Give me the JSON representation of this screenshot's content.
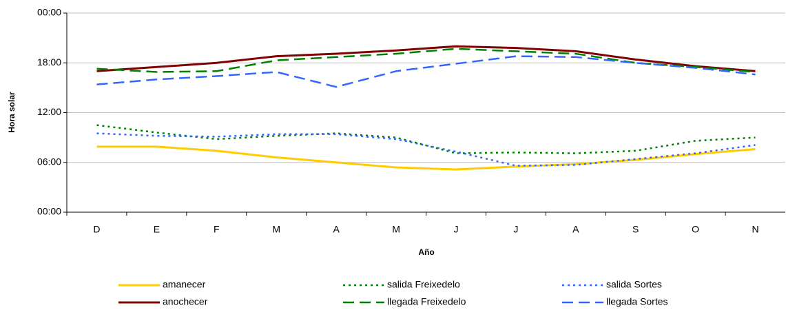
{
  "chart_data": {
    "type": "line",
    "x_label": "Año",
    "y_label": "Hora solar",
    "categories": [
      "D",
      "E",
      "F",
      "M",
      "A",
      "M",
      "J",
      "J",
      "A",
      "S",
      "O",
      "N"
    ],
    "ylim": [
      0,
      24
    ],
    "yticks": [
      {
        "value": 0,
        "label": "00:00"
      },
      {
        "value": 6,
        "label": "06:00"
      },
      {
        "value": 12,
        "label": "12:00"
      },
      {
        "value": 18,
        "label": "18:00"
      },
      {
        "value": 24,
        "label": "00:00"
      }
    ],
    "grid": true,
    "legend": "bottom",
    "series": [
      {
        "name": "amanecer",
        "color": "#ffcc00",
        "dash": "solid",
        "values": [
          7.9,
          7.9,
          7.4,
          6.6,
          6.0,
          5.4,
          5.15,
          5.5,
          5.8,
          6.3,
          7.0,
          7.6
        ]
      },
      {
        "name": "salida Freixedelo",
        "color": "#008000",
        "dash": "dotted",
        "values": [
          10.5,
          9.6,
          8.8,
          9.2,
          9.5,
          9.0,
          7.1,
          7.2,
          7.1,
          7.4,
          8.6,
          9.0
        ]
      },
      {
        "name": "salida Sortes",
        "color": "#3366ff",
        "dash": "dotted",
        "values": [
          9.5,
          9.2,
          9.1,
          9.4,
          9.4,
          8.8,
          7.3,
          5.6,
          5.7,
          6.4,
          7.1,
          8.1
        ]
      },
      {
        "name": "anochecer",
        "color": "#800000",
        "dash": "solid",
        "values": [
          17.0,
          17.5,
          18.0,
          18.8,
          19.1,
          19.5,
          20.0,
          19.8,
          19.4,
          18.4,
          17.6,
          17.0
        ]
      },
      {
        "name": "llegada Freixedelo",
        "color": "#008000",
        "dash": "dashed",
        "values": [
          17.3,
          16.9,
          17.0,
          18.3,
          18.7,
          19.1,
          19.7,
          19.4,
          19.1,
          18.0,
          17.5,
          16.9
        ]
      },
      {
        "name": "llegada  Sortes",
        "color": "#3366ff",
        "dash": "dashed",
        "values": [
          15.4,
          16.0,
          16.4,
          16.9,
          15.1,
          17.0,
          17.9,
          18.8,
          18.7,
          18.0,
          17.4,
          16.6
        ]
      }
    ]
  }
}
